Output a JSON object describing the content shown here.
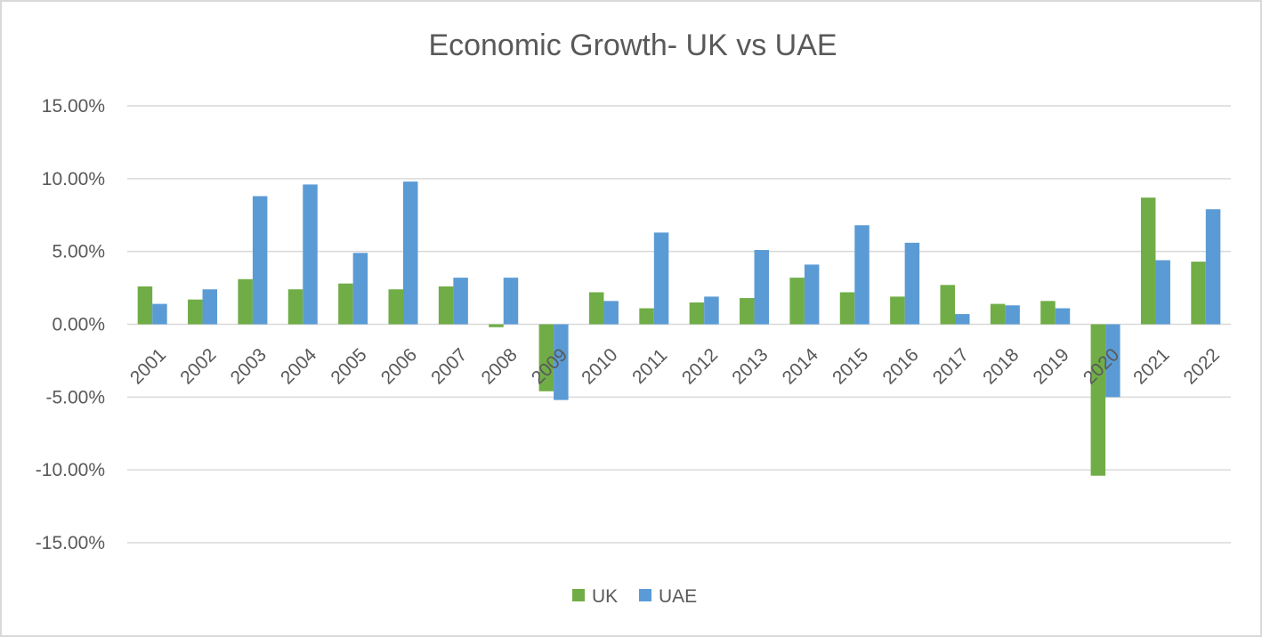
{
  "chart_data": {
    "type": "bar",
    "title": "Economic Growth- UK vs UAE",
    "xlabel": "",
    "ylabel": "",
    "categories": [
      "2001",
      "2002",
      "2003",
      "2004",
      "2005",
      "2006",
      "2007",
      "2008",
      "2009",
      "2010",
      "2011",
      "2012",
      "2013",
      "2014",
      "2015",
      "2016",
      "2017",
      "2018",
      "2019",
      "2020",
      "2021",
      "2022"
    ],
    "series": [
      {
        "name": "UK",
        "color": "#70ad47",
        "values": [
          2.6,
          1.7,
          3.1,
          2.4,
          2.8,
          2.4,
          2.6,
          -0.2,
          -4.6,
          2.2,
          1.1,
          1.5,
          1.8,
          3.2,
          2.2,
          1.9,
          2.7,
          1.4,
          1.6,
          -10.4,
          8.7,
          4.3
        ]
      },
      {
        "name": "UAE",
        "color": "#5b9bd5",
        "values": [
          1.4,
          2.4,
          8.8,
          9.6,
          4.9,
          9.8,
          3.2,
          3.2,
          -5.2,
          1.6,
          6.3,
          1.9,
          5.1,
          4.1,
          6.8,
          5.6,
          0.7,
          1.3,
          1.1,
          -5.0,
          4.4,
          7.9
        ]
      }
    ],
    "ylim": [
      -15,
      15
    ],
    "yticks": [
      15,
      10,
      5,
      0,
      -5,
      -10,
      -15
    ],
    "ytick_labels": [
      "15.00%",
      "10.00%",
      "5.00%",
      "0.00%",
      "-5.00%",
      "-10.00%",
      "-15.00%"
    ],
    "grid": true,
    "legend_position": "bottom",
    "gridline_color": "#d9d9d9"
  }
}
